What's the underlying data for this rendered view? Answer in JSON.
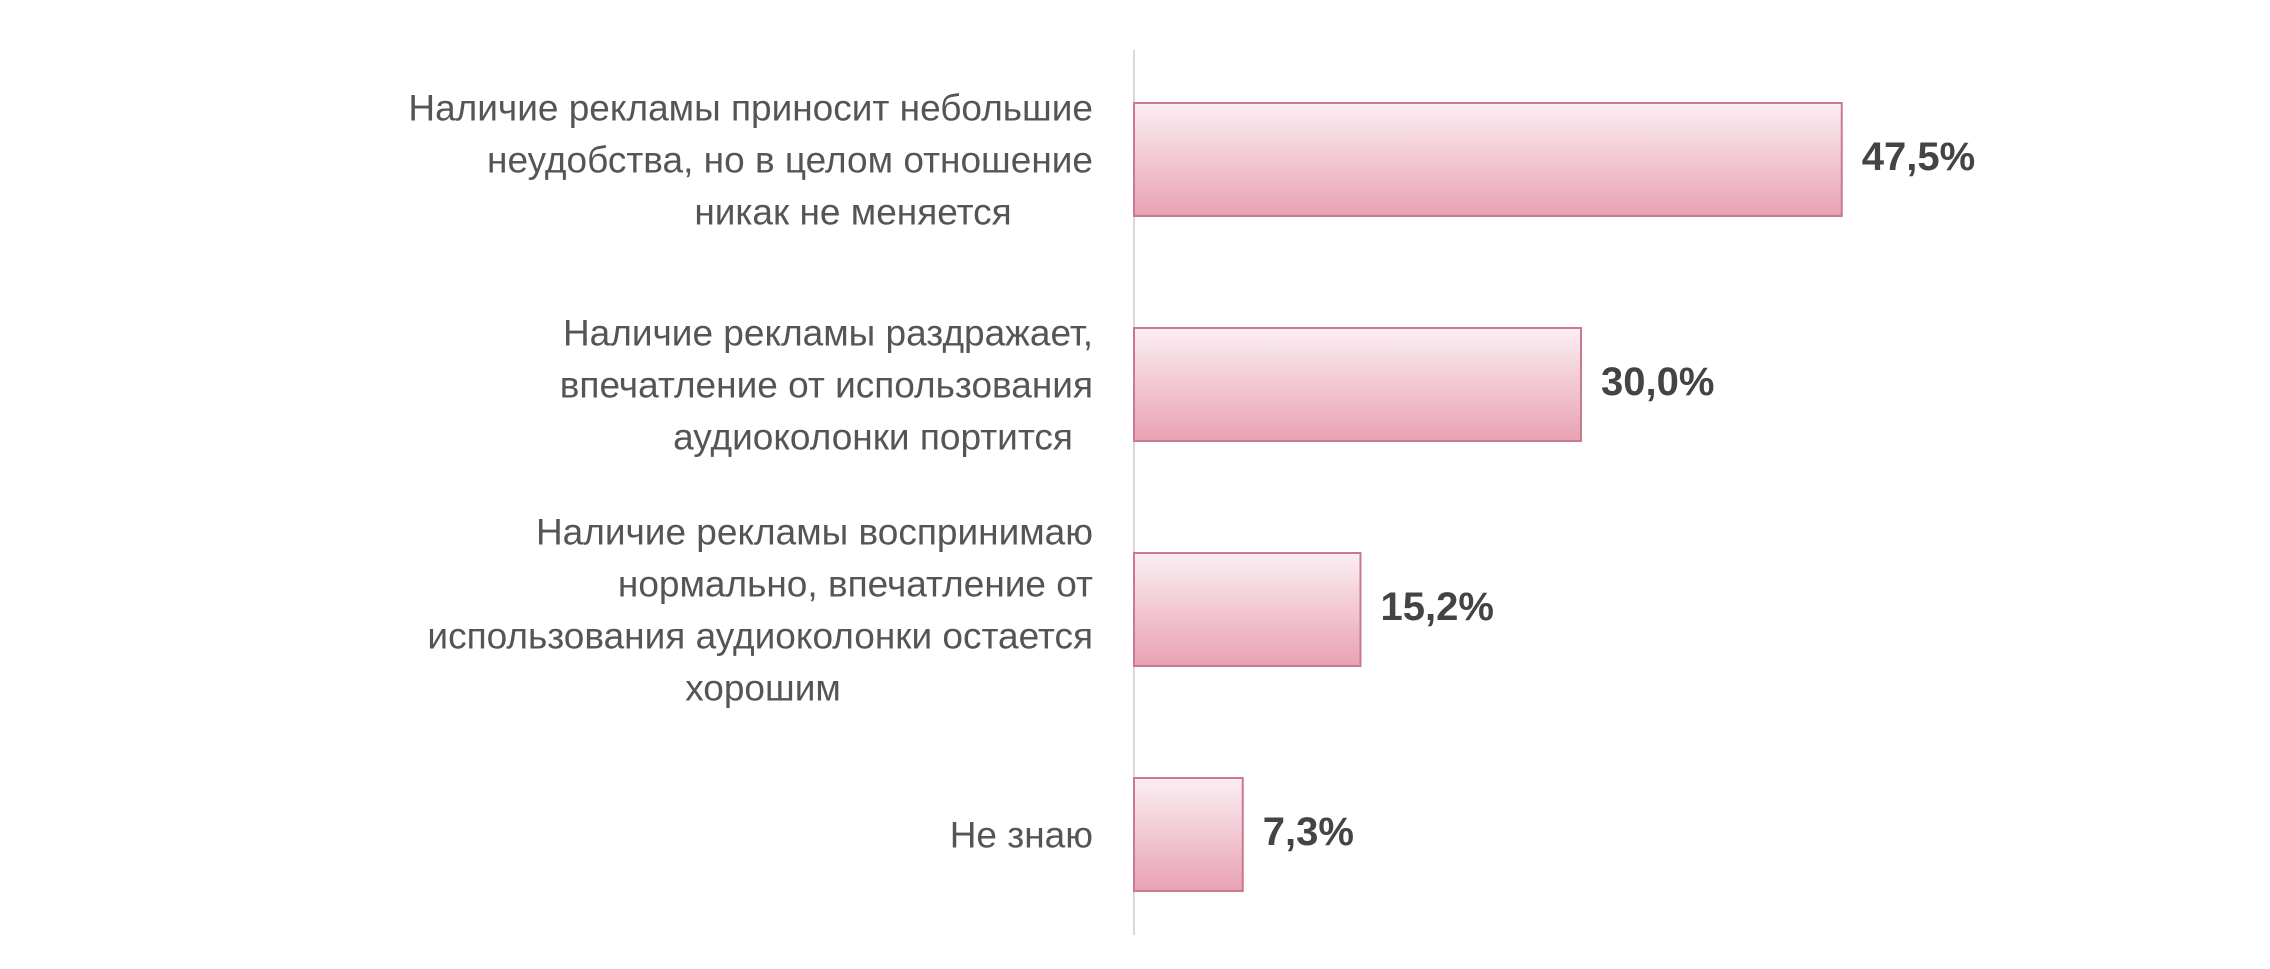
{
  "chart_data": {
    "type": "hbar",
    "categories": [
      "Наличие рекламы приносит небольшие\nнеудобства, но в целом отношение\nникак не меняется",
      "Наличие рекламы раздражает,\nвпечатление от использования\nаудиоколонки портится",
      "Наличие рекламы воспринимаю\nнормально, впечатление от\nиспользования аудиоколонки остается\nхорошим",
      "Не знаю"
    ],
    "values": [
      47.5,
      30.0,
      15.2,
      7.3
    ],
    "value_labels": [
      "47,5%",
      "30,0%",
      "15,2%",
      "7,3%"
    ],
    "color": "#e8a2b4",
    "xlim": [
      0,
      50
    ]
  }
}
